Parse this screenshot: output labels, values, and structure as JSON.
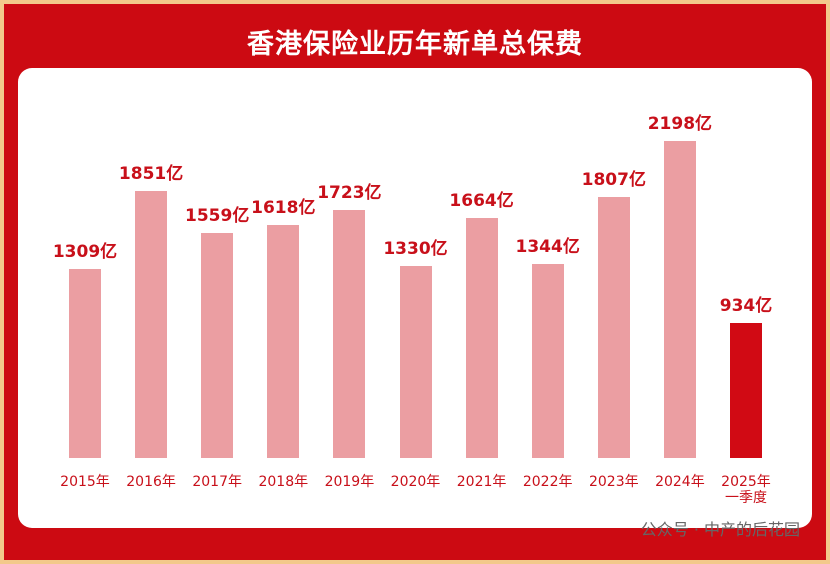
{
  "chart_data": {
    "type": "bar",
    "title": "香港保险业历年新单总保费",
    "categories": [
      "2015年",
      "2016年",
      "2017年",
      "2018年",
      "2019年",
      "2020年",
      "2021年",
      "2022年",
      "2023年",
      "2024年",
      "2025年\n一季度"
    ],
    "values": [
      1309,
      1851,
      1559,
      1618,
      1723,
      1330,
      1664,
      1344,
      1807,
      2198,
      934
    ],
    "value_labels": [
      "1309亿",
      "1851亿",
      "1559亿",
      "1618亿",
      "1723亿",
      "1330亿",
      "1664亿",
      "1344亿",
      "1807亿",
      "2198亿",
      "934亿"
    ],
    "colors": [
      "#eb9ea2",
      "#eb9ea2",
      "#eb9ea2",
      "#eb9ea2",
      "#eb9ea2",
      "#eb9ea2",
      "#eb9ea2",
      "#eb9ea2",
      "#eb9ea2",
      "#eb9ea2",
      "#d10a14"
    ],
    "watermark": "公众号 · 中产的后花园"
  }
}
